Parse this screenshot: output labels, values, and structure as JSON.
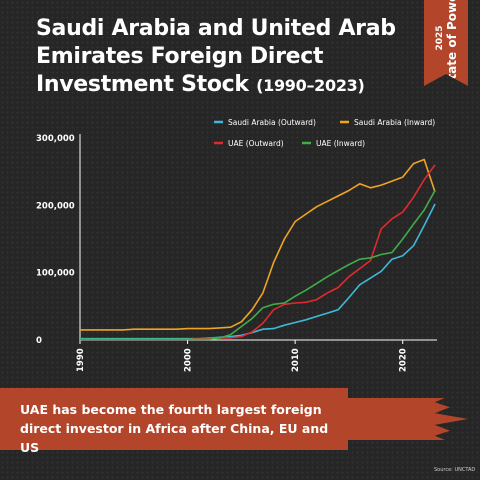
{
  "header": {
    "title": "Saudi Arabia and United Arab Emirates Foreign  Direct Investment Stock",
    "years": "(1990–2023)"
  },
  "badge": {
    "year": "2025",
    "name": "State of Power"
  },
  "banner": {
    "text": "UAE has become the fourth largest foreign direct investor in Africa after China, EU and US"
  },
  "source": "Source: UNCTAD",
  "chart_data": {
    "type": "line",
    "title": "Saudi Arabia and United Arab Emirates Foreign  Direct Investment Stock (1990–2023)",
    "xlim": [
      1990,
      2023
    ],
    "ylim": [
      0,
      300000
    ],
    "x_ticks": [
      1990,
      2000,
      2010,
      2020
    ],
    "y_ticks": [
      0,
      100000,
      200000,
      300000
    ],
    "y_tick_labels": [
      "0",
      "100,000",
      "200,000",
      "300,000"
    ],
    "grid": false,
    "legend_position": "top-right",
    "x": [
      1990,
      1991,
      1992,
      1993,
      1994,
      1995,
      1996,
      1997,
      1998,
      1999,
      2000,
      2001,
      2002,
      2003,
      2004,
      2005,
      2006,
      2007,
      2008,
      2009,
      2010,
      2011,
      2012,
      2013,
      2014,
      2015,
      2016,
      2017,
      2018,
      2019,
      2020,
      2021,
      2022,
      2023
    ],
    "series": [
      {
        "name": "Saudi Arabia (Outward)",
        "color": "#3fb8d8",
        "values": [
          2000,
          2000,
          2000,
          2000,
          2000,
          2000,
          2000,
          2000,
          2000,
          2000,
          2000,
          2000,
          3000,
          4000,
          5000,
          7000,
          11000,
          16000,
          17000,
          22000,
          26000,
          30000,
          35000,
          40000,
          45000,
          63000,
          82000,
          92000,
          102000,
          120000,
          125000,
          140000,
          170000,
          202000
        ]
      },
      {
        "name": "Saudi Arabia (Inward)",
        "color": "#f0a422",
        "values": [
          15000,
          15000,
          15000,
          15000,
          15000,
          16000,
          16000,
          16000,
          16000,
          16000,
          17000,
          17000,
          17000,
          18000,
          19000,
          27000,
          45000,
          70000,
          115000,
          150000,
          176000,
          187000,
          198000,
          206000,
          214000,
          222000,
          232000,
          226000,
          230000,
          236000,
          242000,
          262000,
          268000,
          220000
        ]
      },
      {
        "name": "UAE (Outward)",
        "color": "#e02a2e",
        "values": [
          1000,
          1000,
          1000,
          1000,
          1000,
          1000,
          1000,
          1000,
          1000,
          1000,
          1000,
          2000,
          2000,
          3000,
          3000,
          5000,
          12000,
          25000,
          45000,
          53000,
          55000,
          56000,
          60000,
          70000,
          78000,
          94000,
          106000,
          118000,
          165000,
          180000,
          190000,
          212000,
          238000,
          260000
        ]
      },
      {
        "name": "UAE (Inward)",
        "color": "#3fae49",
        "values": [
          1000,
          1000,
          1000,
          1000,
          1000,
          1000,
          1000,
          1000,
          1000,
          1000,
          1000,
          1000,
          1000,
          3000,
          8000,
          20000,
          32000,
          48000,
          53000,
          55000,
          65000,
          74000,
          84000,
          94000,
          103000,
          112000,
          120000,
          122000,
          127000,
          130000,
          150000,
          172000,
          193000,
          222000
        ]
      }
    ]
  }
}
